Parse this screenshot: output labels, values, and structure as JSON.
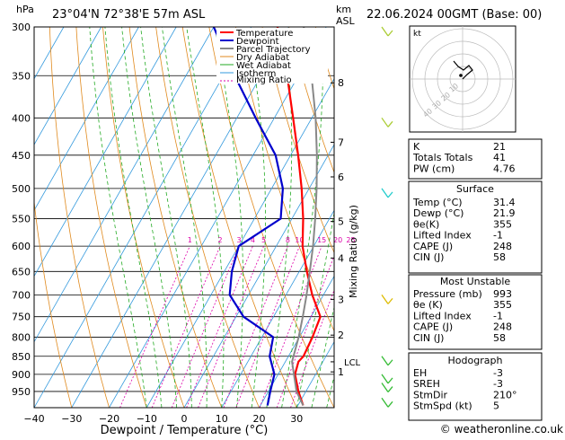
{
  "header": {
    "hpa_label": "hPa",
    "location": "23°04'N  72°38'E  57m  ASL",
    "km_label": "km",
    "asl_label": "ASL",
    "datetime": "22.06.2024  00GMT  (Base: 00)"
  },
  "axes": {
    "xlabel": "Dewpoint / Temperature (°C)",
    "mixing_label": "Mixing Ratio (g/kg)",
    "pressure_ticks": [
      300,
      350,
      400,
      450,
      500,
      550,
      600,
      650,
      700,
      750,
      800,
      850,
      900,
      950
    ],
    "temp_ticks": [
      -40,
      -30,
      -20,
      -10,
      0,
      10,
      20,
      30
    ],
    "km_ticks": [
      {
        "label": "8",
        "p": 358
      },
      {
        "label": "7",
        "p": 432
      },
      {
        "label": "6",
        "p": 482
      },
      {
        "label": "5",
        "p": 555
      },
      {
        "label": "4",
        "p": 623
      },
      {
        "label": "3",
        "p": 710
      },
      {
        "label": "2",
        "p": 795
      },
      {
        "label": "1",
        "p": 893
      }
    ],
    "lcl": {
      "label": "LCL",
      "p": 865
    },
    "mixing_ratio_values": [
      "1",
      "2",
      "3",
      "4",
      "5",
      "8",
      "10",
      "15",
      "20",
      "25"
    ]
  },
  "legend": {
    "temperature": "Temperature",
    "dewpoint": "Dewpoint",
    "parcel": "Parcel Trajectory",
    "dry_adiabat": "Dry Adiabat",
    "wet_adiabat": "Wet Adiabat",
    "isotherm": "Isotherm",
    "mixing_ratio": "Mixing Ratio"
  },
  "chart_data": {
    "type": "line",
    "title": "23°04'N  72°38'E  57m  ASL",
    "xlabel": "Dewpoint / Temperature (°C)",
    "ylabel": "hPa",
    "xlim": [
      -40,
      40
    ],
    "ylim": [
      1000,
      300
    ],
    "y_scale": "log",
    "skew": "skew-T",
    "series": [
      {
        "name": "Temperature",
        "color": "#ff0000",
        "points": [
          {
            "p": 993,
            "t": 31.4
          },
          {
            "p": 950,
            "t": 28
          },
          {
            "p": 900,
            "t": 24.5
          },
          {
            "p": 865,
            "t": 23.5
          },
          {
            "p": 850,
            "t": 24
          },
          {
            "p": 800,
            "t": 23.5
          },
          {
            "p": 750,
            "t": 22.5
          },
          {
            "p": 700,
            "t": 17
          },
          {
            "p": 650,
            "t": 12
          },
          {
            "p": 600,
            "t": 7
          },
          {
            "p": 550,
            "t": 3
          },
          {
            "p": 500,
            "t": -2
          },
          {
            "p": 450,
            "t": -8
          },
          {
            "p": 400,
            "t": -15
          },
          {
            "p": 350,
            "t": -23
          },
          {
            "p": 300,
            "t": -33
          }
        ]
      },
      {
        "name": "Dewpoint",
        "color": "#0000cc",
        "points": [
          {
            "p": 993,
            "t": 21.9
          },
          {
            "p": 950,
            "t": 20.5
          },
          {
            "p": 900,
            "t": 19
          },
          {
            "p": 850,
            "t": 15
          },
          {
            "p": 800,
            "t": 13
          },
          {
            "p": 750,
            "t": 2
          },
          {
            "p": 700,
            "t": -5
          },
          {
            "p": 650,
            "t": -8
          },
          {
            "p": 600,
            "t": -10
          },
          {
            "p": 550,
            "t": -3
          },
          {
            "p": 500,
            "t": -7
          },
          {
            "p": 450,
            "t": -14
          },
          {
            "p": 400,
            "t": -25
          },
          {
            "p": 350,
            "t": -37
          },
          {
            "p": 300,
            "t": -50
          }
        ]
      },
      {
        "name": "Parcel Trajectory",
        "color": "#888888",
        "points": [
          {
            "p": 993,
            "t": 31.4
          },
          {
            "p": 950,
            "t": 27.5
          },
          {
            "p": 865,
            "t": 21.8
          },
          {
            "p": 800,
            "t": 19.8
          },
          {
            "p": 750,
            "t": 17.8
          },
          {
            "p": 700,
            "t": 15.5
          },
          {
            "p": 650,
            "t": 12.8
          },
          {
            "p": 600,
            "t": 9.8
          },
          {
            "p": 550,
            "t": 6.2
          },
          {
            "p": 500,
            "t": 2
          },
          {
            "p": 450,
            "t": -3
          },
          {
            "p": 400,
            "t": -9
          },
          {
            "p": 350,
            "t": -16.5
          },
          {
            "p": 300,
            "t": -26
          }
        ]
      }
    ],
    "wind_barbs": [
      {
        "p": 300,
        "color": "#aacc33"
      },
      {
        "p": 400,
        "color": "#aacc33"
      },
      {
        "p": 500,
        "color": "#22cccc"
      },
      {
        "p": 700,
        "color": "#ddbb00"
      },
      {
        "p": 850,
        "color": "#33bb33"
      },
      {
        "p": 900,
        "color": "#33bb33"
      },
      {
        "p": 925,
        "color": "#33bb33"
      },
      {
        "p": 970,
        "color": "#33bb33"
      }
    ]
  },
  "hodograph": {
    "label": "kt",
    "ring_labels": [
      "10",
      "20",
      "30",
      "40"
    ]
  },
  "indices": {
    "rows": [
      {
        "label": "K",
        "value": "21"
      },
      {
        "label": "Totals Totals",
        "value": "41"
      },
      {
        "label": "PW (cm)",
        "value": "4.76"
      }
    ]
  },
  "surface": {
    "title": "Surface",
    "rows": [
      {
        "label": "Temp (°C)",
        "value": "31.4"
      },
      {
        "label": "Dewp (°C)",
        "value": "21.9"
      },
      {
        "label": "θe(K)",
        "value": "355"
      },
      {
        "label": "Lifted Index",
        "value": "-1"
      },
      {
        "label": "CAPE (J)",
        "value": "248"
      },
      {
        "label": "CIN (J)",
        "value": "58"
      }
    ]
  },
  "most_unstable": {
    "title": "Most Unstable",
    "rows": [
      {
        "label": "Pressure (mb)",
        "value": "993"
      },
      {
        "label": "θe (K)",
        "value": "355"
      },
      {
        "label": "Lifted Index",
        "value": "-1"
      },
      {
        "label": "CAPE (J)",
        "value": "248"
      },
      {
        "label": "CIN (J)",
        "value": "58"
      }
    ]
  },
  "hodo_table": {
    "title": "Hodograph",
    "rows": [
      {
        "label": "EH",
        "value": "-3"
      },
      {
        "label": "SREH",
        "value": "-3"
      },
      {
        "label": "StmDir",
        "value": "210°"
      },
      {
        "label": "StmSpd (kt)",
        "value": "5"
      }
    ]
  },
  "footer": {
    "copyright": "© weatheronline.co.uk"
  }
}
